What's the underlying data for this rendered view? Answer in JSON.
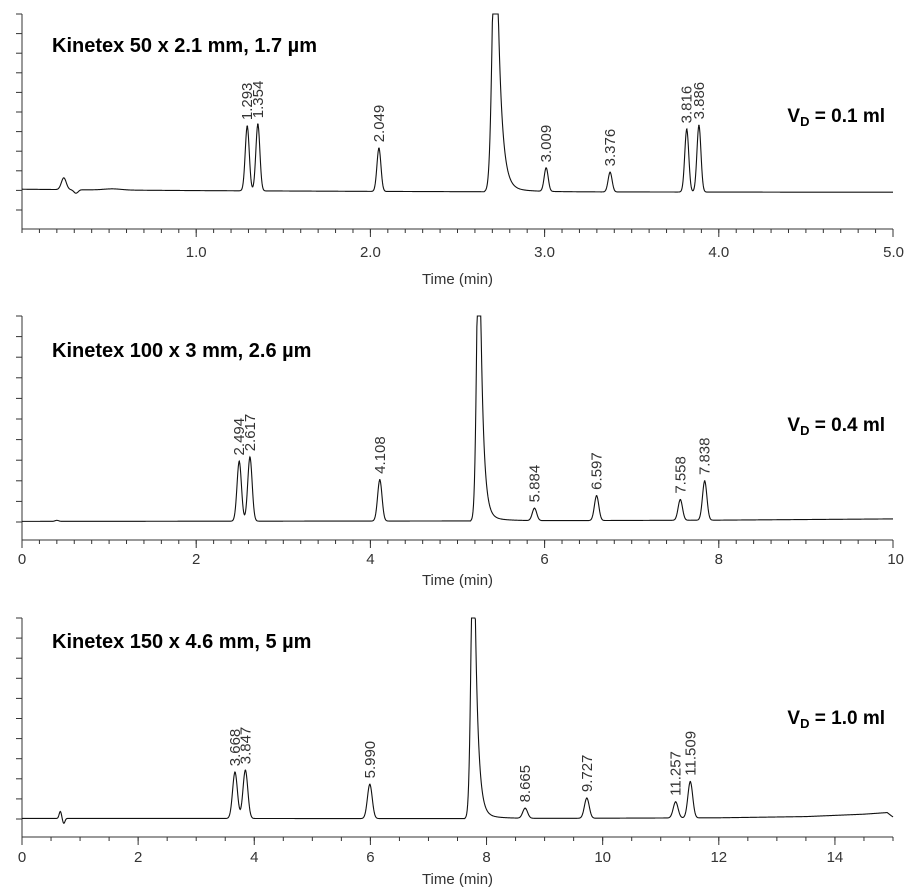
{
  "chart_data": [
    {
      "type": "line",
      "title": "Kinetex 50 x 2.1 mm, 1.7 µm",
      "annotation": {
        "prefix": "V",
        "subscript": "D",
        "suffix": " = 0.1 ml"
      },
      "xlabel": "Time (min)",
      "xlim": [
        0,
        5.0
      ],
      "xticks": [
        1.0,
        2.0,
        3.0,
        4.0,
        5.0
      ],
      "xtick_labels": [
        "1.0",
        "2.0",
        "3.0",
        "4.0",
        "5.0"
      ],
      "x_minor_step": 0.1,
      "ylim": [
        0,
        100
      ],
      "y_ticks": [
        0,
        10,
        20,
        30,
        40,
        50,
        60,
        70,
        80,
        90,
        100
      ],
      "baseline": [
        [
          0.0,
          10.6
        ],
        [
          0.5,
          10.2
        ],
        [
          1.0,
          9.9
        ],
        [
          2.0,
          9.5
        ],
        [
          2.7,
          9.3
        ],
        [
          3.5,
          9.2
        ],
        [
          4.5,
          9.1
        ],
        [
          5.0,
          9.1
        ]
      ],
      "disturbances": [
        {
          "t": 0.24,
          "height": 6.0,
          "width": 0.014
        },
        {
          "t": 0.31,
          "height": -1.8,
          "width": 0.012
        },
        {
          "t": 0.52,
          "height": 0.6,
          "width": 0.05
        }
      ],
      "solvent_peak": {
        "t": 2.72,
        "height": 100,
        "half_width": 0.03
      },
      "peaks": [
        {
          "t": 1.293,
          "label": "1.293",
          "height": 33
        },
        {
          "t": 1.354,
          "label": "1.354",
          "height": 34
        },
        {
          "t": 2.049,
          "label": "2.049",
          "height": 22
        },
        {
          "t": 3.009,
          "label": "3.009",
          "height": 12
        },
        {
          "t": 3.376,
          "label": "3.376",
          "height": 10
        },
        {
          "t": 3.816,
          "label": "3.816",
          "height": 32
        },
        {
          "t": 3.886,
          "label": "3.886",
          "height": 34
        }
      ]
    },
    {
      "type": "line",
      "title": "Kinetex 100 x 3 mm, 2.6 µm",
      "annotation": {
        "prefix": "V",
        "subscript": "D",
        "suffix": " = 0.4 ml"
      },
      "xlabel": "Time (min)",
      "xlim": [
        0,
        10
      ],
      "xticks": [
        0,
        2,
        4,
        6,
        8,
        10
      ],
      "xtick_labels": [
        "0",
        "2",
        "4",
        "6",
        "8",
        "10"
      ],
      "x_minor_step": 0.2,
      "ylim": [
        0,
        100
      ],
      "y_ticks": [
        0,
        10,
        20,
        30,
        40,
        50,
        60,
        70,
        80,
        90,
        100
      ],
      "baseline": [
        [
          0.0,
          0.3
        ],
        [
          5.0,
          0.5
        ],
        [
          8.0,
          0.9
        ],
        [
          10.0,
          1.5
        ]
      ],
      "disturbances": [
        {
          "t": 0.4,
          "height": 0.5,
          "width": 0.02
        }
      ],
      "solvent_peak": {
        "t": 5.25,
        "height": 100,
        "half_width": 0.045
      },
      "peaks": [
        {
          "t": 2.494,
          "label": "2.494",
          "height": 29
        },
        {
          "t": 2.617,
          "label": "2.617",
          "height": 31
        },
        {
          "t": 4.108,
          "label": "4.108",
          "height": 20
        },
        {
          "t": 5.884,
          "label": "5.884",
          "height": 6
        },
        {
          "t": 6.597,
          "label": "6.597",
          "height": 12
        },
        {
          "t": 7.558,
          "label": "7.558",
          "height": 10
        },
        {
          "t": 7.838,
          "label": "7.838",
          "height": 19
        }
      ]
    },
    {
      "type": "line",
      "title": "Kinetex 150 x 4.6 mm, 5 µm",
      "annotation": {
        "prefix": "V",
        "subscript": "D",
        "suffix": " = 1.0 ml"
      },
      "xlabel": "Time (min)",
      "xlim": [
        0,
        15
      ],
      "xticks": [
        0,
        2,
        4,
        6,
        8,
        10,
        12,
        14
      ],
      "xtick_labels": [
        "0",
        "2",
        "4",
        "6",
        "8",
        "10",
        "12",
        "14"
      ],
      "x_minor_step": 0.5,
      "ylim": [
        0,
        100
      ],
      "y_ticks": [
        0,
        10,
        20,
        30,
        40,
        50,
        60,
        70,
        80,
        90,
        100
      ],
      "baseline": [
        [
          0.0,
          0.3
        ],
        [
          8.0,
          0.2
        ],
        [
          12.0,
          0.6
        ],
        [
          13.5,
          1.2
        ],
        [
          14.5,
          2.4
        ],
        [
          14.9,
          3.2
        ],
        [
          15.0,
          1.0
        ]
      ],
      "disturbances": [
        {
          "t": 0.66,
          "height": 3.5,
          "width": 0.02
        },
        {
          "t": 0.72,
          "height": -2.5,
          "width": 0.02
        }
      ],
      "solvent_peak": {
        "t": 7.78,
        "height": 100,
        "half_width": 0.07
      },
      "peaks": [
        {
          "t": 3.668,
          "label": "3.668",
          "height": 23
        },
        {
          "t": 3.847,
          "label": "3.847",
          "height": 24
        },
        {
          "t": 5.99,
          "label": "5.990",
          "height": 17
        },
        {
          "t": 8.665,
          "label": "8.665",
          "height": 5
        },
        {
          "t": 9.727,
          "label": "9.727",
          "height": 10
        },
        {
          "t": 11.257,
          "label": "11.257",
          "height": 8
        },
        {
          "t": 11.509,
          "label": "11.509",
          "height": 18
        }
      ]
    }
  ]
}
